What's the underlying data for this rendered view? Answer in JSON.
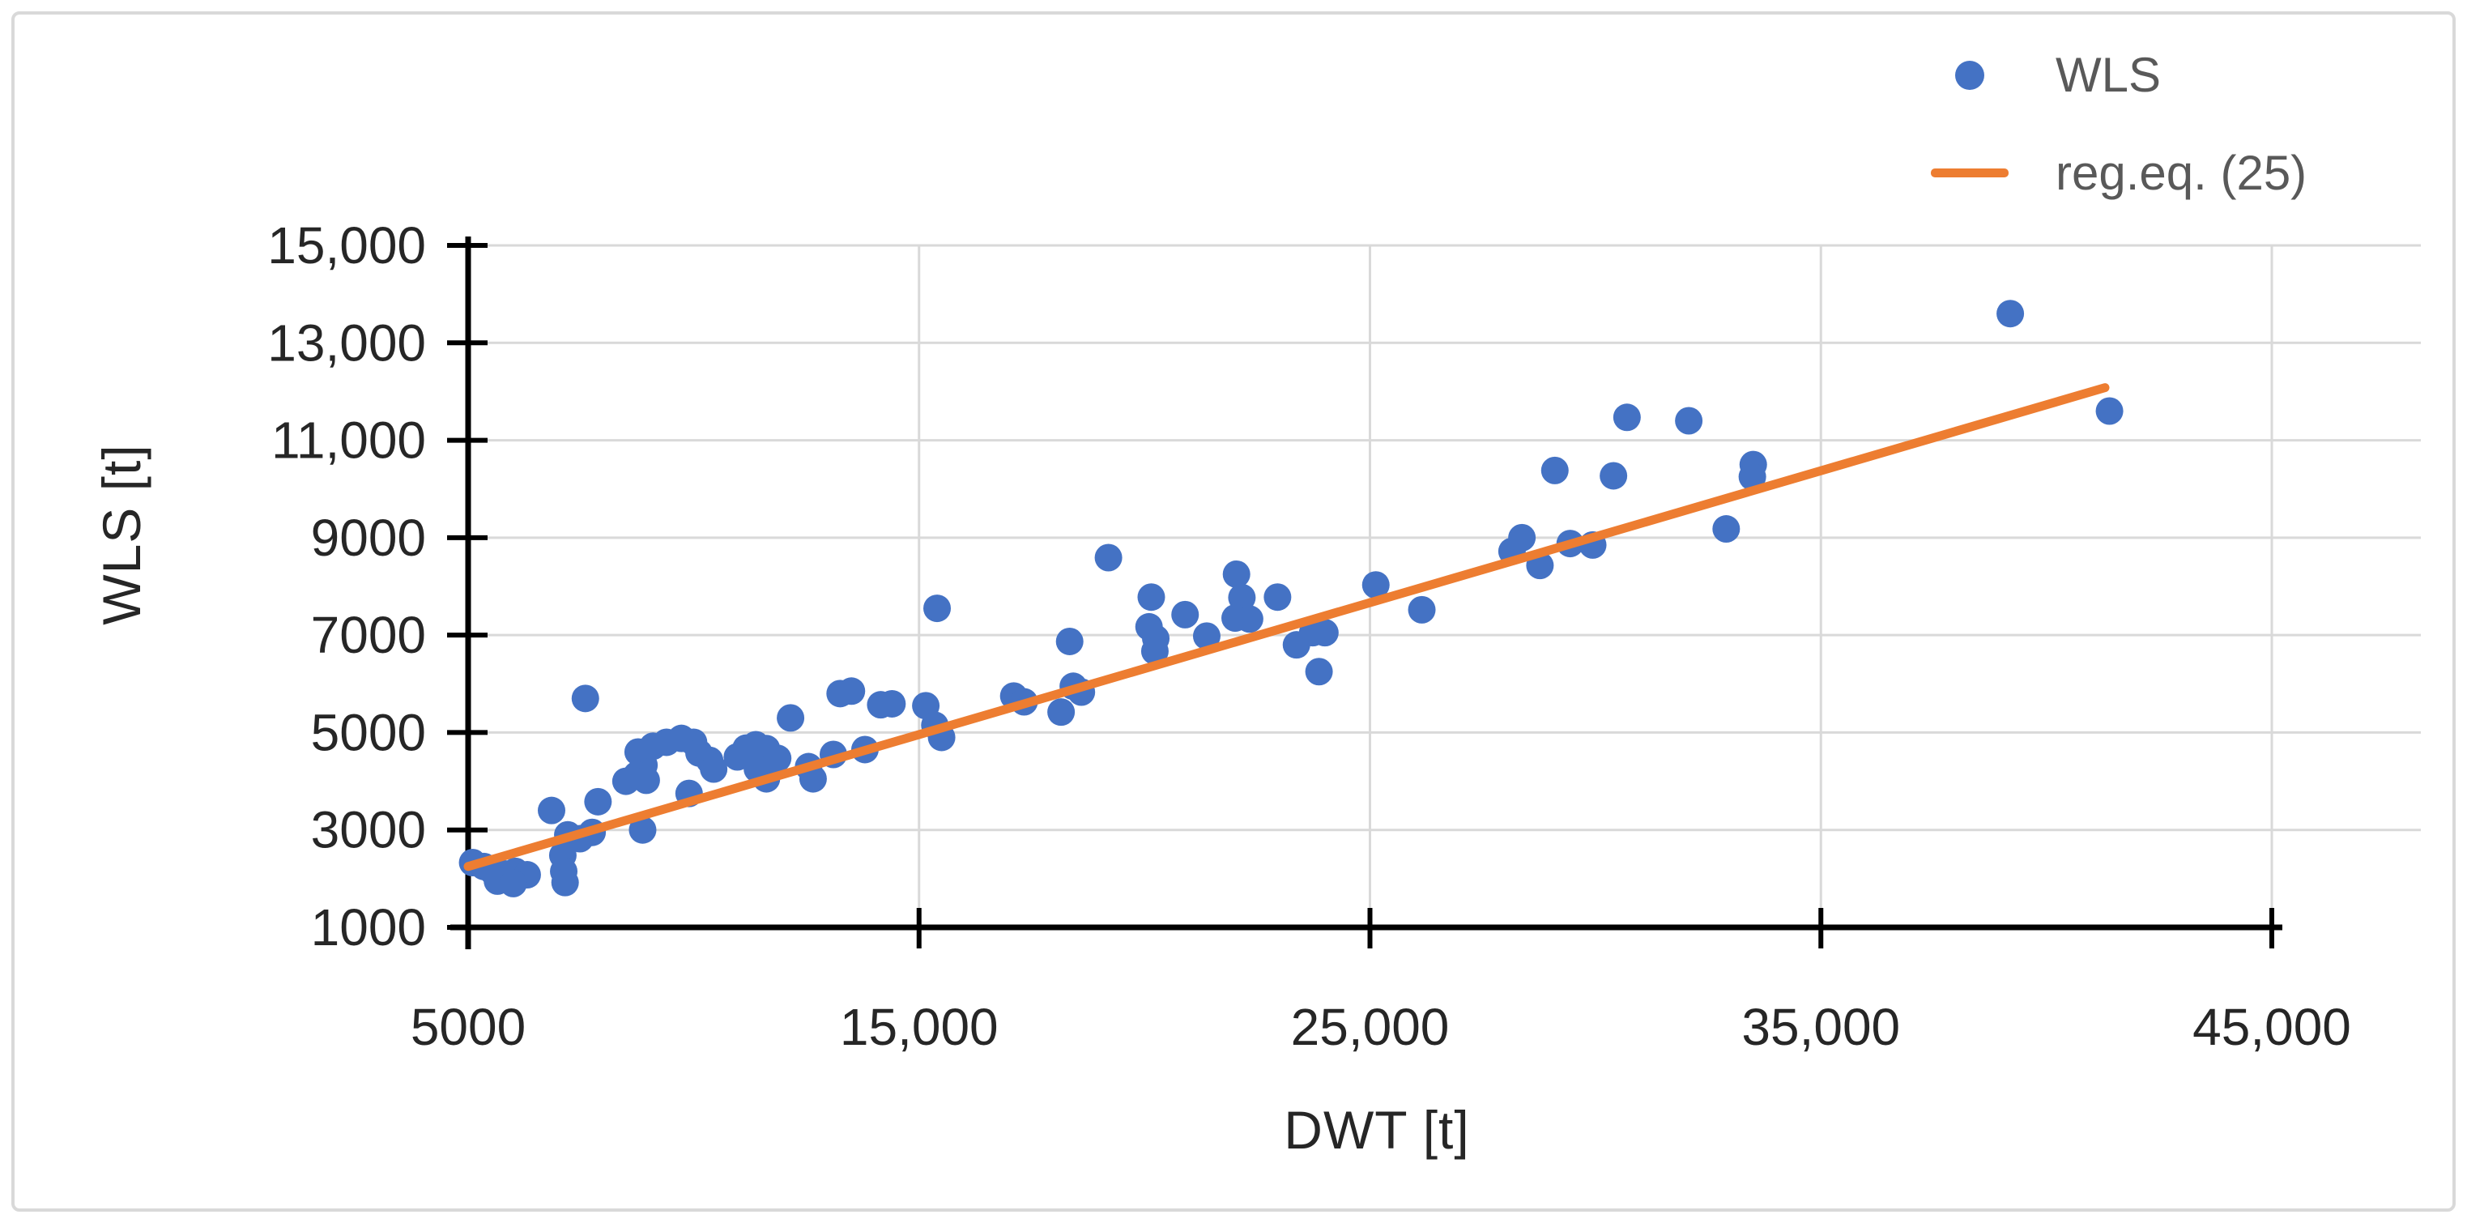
{
  "window": {
    "background": "#ffffff",
    "frame_border_color": "#d9d9d9"
  },
  "chart_data": {
    "type": "scatter",
    "title": "",
    "xlabel": "DWT [t]",
    "ylabel": "WLS [t]",
    "xlim": [
      5000,
      48300
    ],
    "ylim": [
      1000,
      15000
    ],
    "grid": true,
    "grid_color": "#d9d9d9",
    "axis_color": "#000000",
    "tick_label_color": "#262626",
    "legend_position": "top-right",
    "x_axis": {
      "title": "DWT [t]",
      "tick_values": [
        5000,
        15000,
        25000,
        35000,
        45000
      ],
      "tick_labels": [
        "5000",
        "15,000",
        "25,000",
        "35,000",
        "45,000"
      ]
    },
    "y_axis": {
      "title": "WLS [t]",
      "tick_values": [
        1000,
        3000,
        5000,
        7000,
        9000,
        11000,
        13000,
        15000
      ],
      "tick_labels": [
        "1000",
        "3000",
        "5000",
        "7000",
        "9000",
        "11,000",
        "13,000",
        "15,000"
      ]
    },
    "series": [
      {
        "name": "WLS",
        "type": "scatter",
        "color": "#4472C4",
        "marker": "circle",
        "points": [
          [
            5100,
            2330
          ],
          [
            5350,
            2250
          ],
          [
            5550,
            2150
          ],
          [
            5800,
            2100
          ],
          [
            6050,
            2150
          ],
          [
            6310,
            2080
          ],
          [
            5650,
            1950
          ],
          [
            6000,
            1900
          ],
          [
            6850,
            3400
          ],
          [
            7100,
            2480
          ],
          [
            7120,
            2150
          ],
          [
            7150,
            1920
          ],
          [
            7210,
            2900
          ],
          [
            7480,
            2820
          ],
          [
            7750,
            2950
          ],
          [
            7880,
            3580
          ],
          [
            7600,
            5700
          ],
          [
            8500,
            4000
          ],
          [
            8900,
            4330
          ],
          [
            8870,
            3000
          ],
          [
            8770,
            4600
          ],
          [
            9100,
            4720
          ],
          [
            8740,
            4130
          ],
          [
            8950,
            4020
          ],
          [
            9400,
            4800
          ],
          [
            9730,
            4880
          ],
          [
            10000,
            4800
          ],
          [
            10120,
            4580
          ],
          [
            10355,
            4430
          ],
          [
            10445,
            4250
          ],
          [
            9900,
            3750
          ],
          [
            10970,
            4500
          ],
          [
            11165,
            4680
          ],
          [
            11380,
            4750
          ],
          [
            11615,
            4670
          ],
          [
            11865,
            4470
          ],
          [
            11415,
            4250
          ],
          [
            11615,
            4050
          ],
          [
            12150,
            5300
          ],
          [
            12550,
            4300
          ],
          [
            12650,
            4050
          ],
          [
            13250,
            5800
          ],
          [
            13500,
            5850
          ],
          [
            13100,
            4550
          ],
          [
            13800,
            4650
          ],
          [
            14150,
            5570
          ],
          [
            14400,
            5590
          ],
          [
            15150,
            5550
          ],
          [
            15350,
            5150
          ],
          [
            15500,
            4900
          ],
          [
            15400,
            7550
          ],
          [
            17100,
            5750
          ],
          [
            17330,
            5630
          ],
          [
            18150,
            5420
          ],
          [
            18420,
            5950
          ],
          [
            18600,
            5830
          ],
          [
            18340,
            6870
          ],
          [
            19200,
            8590
          ],
          [
            20150,
            7780
          ],
          [
            20100,
            7170
          ],
          [
            20250,
            6930
          ],
          [
            20230,
            6670
          ],
          [
            20900,
            7420
          ],
          [
            21380,
            6980
          ],
          [
            22040,
            8250
          ],
          [
            22160,
            7770
          ],
          [
            22010,
            7350
          ],
          [
            22330,
            7330
          ],
          [
            22950,
            7780
          ],
          [
            23370,
            6800
          ],
          [
            23730,
            7050
          ],
          [
            24000,
            7050
          ],
          [
            23870,
            6250
          ],
          [
            25130,
            8030
          ],
          [
            26150,
            7520
          ],
          [
            28370,
            9000
          ],
          [
            28150,
            8720
          ],
          [
            28770,
            8430
          ],
          [
            29440,
            8880
          ],
          [
            29940,
            8850
          ],
          [
            29100,
            10380
          ],
          [
            30400,
            10270
          ],
          [
            30700,
            11470
          ],
          [
            32070,
            11400
          ],
          [
            33500,
            10500
          ],
          [
            33480,
            10250
          ],
          [
            32900,
            9180
          ],
          [
            39200,
            13600
          ],
          [
            41400,
            11600
          ]
        ]
      },
      {
        "name": "reg.eq. (25)",
        "type": "line",
        "color": "#ED7D31",
        "x": [
          5000,
          41300
        ],
        "y": [
          2250,
          12080
        ]
      }
    ],
    "legend": [
      {
        "label": "WLS",
        "marker": "dot",
        "color": "#4472C4"
      },
      {
        "label": "reg.eq. (25)",
        "marker": "line",
        "color": "#ED7D31"
      }
    ]
  }
}
